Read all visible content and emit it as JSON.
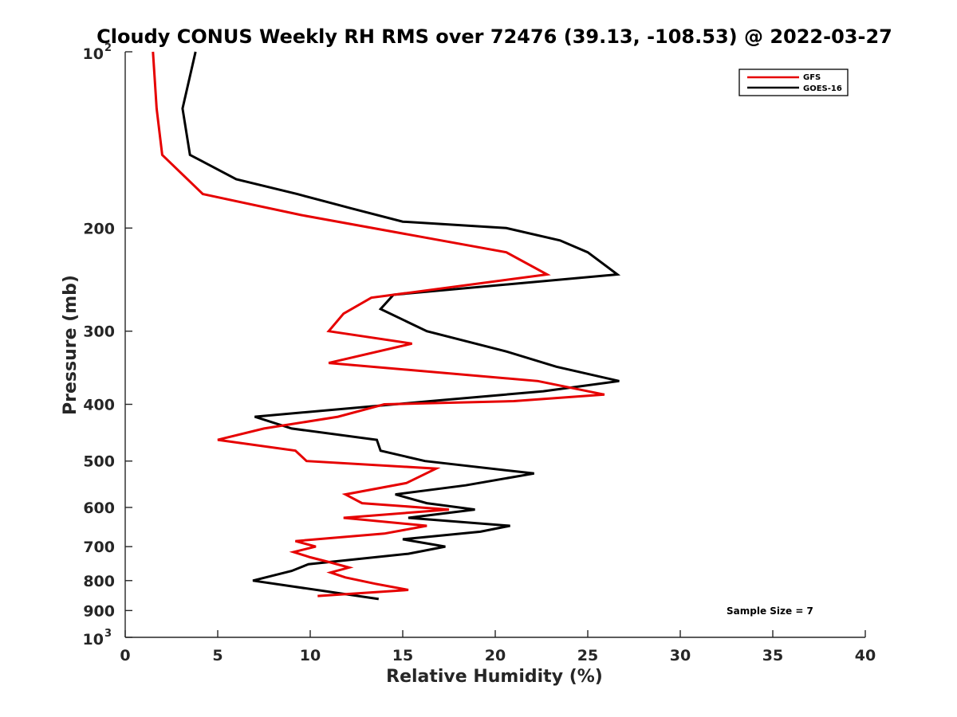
{
  "chart_data": {
    "type": "line",
    "title": "Cloudy CONUS Weekly RH RMS over 72476 (39.13, -108.53) @ 2022-03-27",
    "xlabel": "Relative Humidity (%)",
    "ylabel": "Pressure (mb)",
    "xlim": [
      0,
      40
    ],
    "ylim": [
      100,
      1000
    ],
    "y_scale": "log",
    "y_reversed": true,
    "x_ticks": [
      "0",
      "5",
      "10",
      "15",
      "20",
      "25",
      "30",
      "35",
      "40"
    ],
    "y_ticks": [
      {
        "value": 100,
        "label": "10",
        "sup": "2"
      },
      {
        "value": 200,
        "label": "200"
      },
      {
        "value": 300,
        "label": "300"
      },
      {
        "value": 400,
        "label": "400"
      },
      {
        "value": 500,
        "label": "500"
      },
      {
        "value": 600,
        "label": "600"
      },
      {
        "value": 700,
        "label": "700"
      },
      {
        "value": 800,
        "label": "800"
      },
      {
        "value": 900,
        "label": "900"
      },
      {
        "value": 1000,
        "label": "10",
        "sup": "3"
      }
    ],
    "legend_position": "top-right",
    "annotation": "Sample Size = 7",
    "series": [
      {
        "name": "GFS",
        "color": "#e60000",
        "points": [
          [
            1.5,
            100
          ],
          [
            1.7,
            125
          ],
          [
            2.0,
            150
          ],
          [
            4.2,
            175
          ],
          [
            9.5,
            190
          ],
          [
            20.6,
            220
          ],
          [
            22.8,
            240
          ],
          [
            13.3,
            263
          ],
          [
            11.8,
            280
          ],
          [
            11.0,
            300
          ],
          [
            15.5,
            315
          ],
          [
            11.0,
            340
          ],
          [
            22.3,
            365
          ],
          [
            25.9,
            385
          ],
          [
            21.0,
            395
          ],
          [
            14.0,
            400
          ],
          [
            11.5,
            420
          ],
          [
            7.5,
            440
          ],
          [
            5.0,
            460
          ],
          [
            9.2,
            480
          ],
          [
            9.8,
            500
          ],
          [
            16.8,
            515
          ],
          [
            15.2,
            545
          ],
          [
            11.9,
            570
          ],
          [
            12.8,
            590
          ],
          [
            17.5,
            605
          ],
          [
            11.8,
            625
          ],
          [
            16.3,
            645
          ],
          [
            14.0,
            665
          ],
          [
            9.2,
            685
          ],
          [
            10.3,
            700
          ],
          [
            9.1,
            715
          ],
          [
            10.0,
            730
          ],
          [
            11.1,
            745
          ],
          [
            12.1,
            760
          ],
          [
            11.1,
            775
          ],
          [
            11.9,
            790
          ],
          [
            13.5,
            810
          ],
          [
            15.3,
            830
          ],
          [
            10.4,
            850
          ]
        ]
      },
      {
        "name": "GOES-16",
        "color": "#000000",
        "points": [
          [
            3.8,
            100
          ],
          [
            3.1,
            125
          ],
          [
            3.5,
            150
          ],
          [
            6.0,
            165
          ],
          [
            9.3,
            175
          ],
          [
            12.2,
            185
          ],
          [
            15.0,
            195
          ],
          [
            20.6,
            200
          ],
          [
            23.5,
            210
          ],
          [
            25.0,
            220
          ],
          [
            26.6,
            240
          ],
          [
            14.5,
            260
          ],
          [
            13.8,
            275
          ],
          [
            16.3,
            300
          ],
          [
            20.6,
            325
          ],
          [
            23.3,
            345
          ],
          [
            26.7,
            365
          ],
          [
            22.6,
            380
          ],
          [
            16.5,
            395
          ],
          [
            7.0,
            420
          ],
          [
            9.0,
            440
          ],
          [
            13.6,
            460
          ],
          [
            13.8,
            480
          ],
          [
            16.2,
            500
          ],
          [
            22.1,
            525
          ],
          [
            18.4,
            550
          ],
          [
            14.6,
            570
          ],
          [
            16.3,
            590
          ],
          [
            18.9,
            605
          ],
          [
            15.3,
            625
          ],
          [
            20.8,
            645
          ],
          [
            19.2,
            660
          ],
          [
            15.0,
            680
          ],
          [
            17.3,
            700
          ],
          [
            15.3,
            720
          ],
          [
            9.9,
            750
          ],
          [
            9.0,
            770
          ],
          [
            6.9,
            800
          ],
          [
            13.7,
            860
          ]
        ]
      }
    ]
  }
}
